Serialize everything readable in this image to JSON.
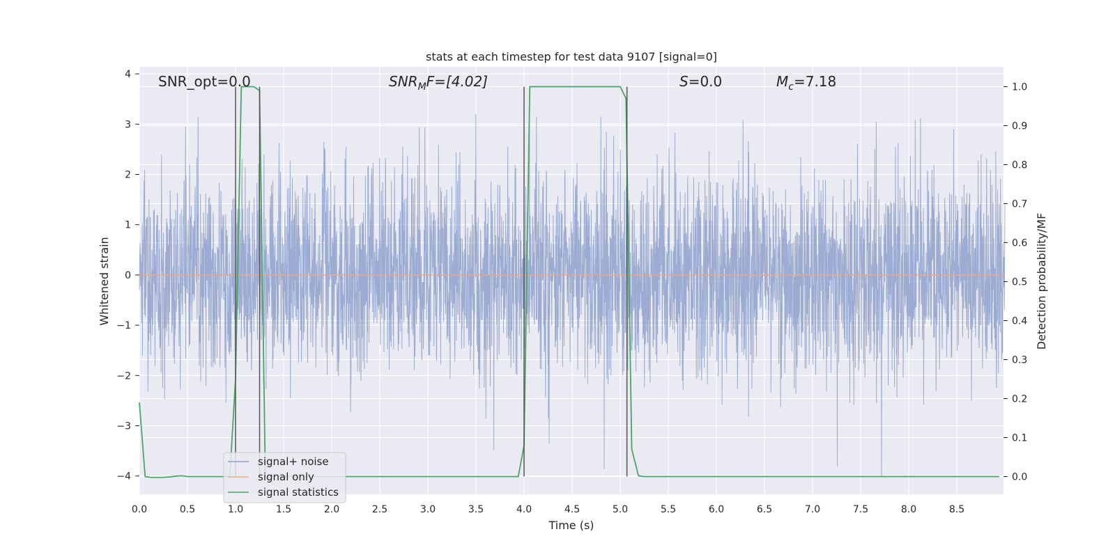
{
  "chart_data": {
    "type": "line",
    "title": "stats at each timestep for test data 9107 [signal=0]",
    "xlabel": "Time (s)",
    "ylabel": "Whitened strain",
    "y2label": "Detection probability/MF",
    "xlim": [
      0.0,
      9.0
    ],
    "ylim": [
      -4.4,
      4.15
    ],
    "y2lim": [
      -0.05,
      1.03
    ],
    "xticks": [
      "0.0",
      "0.5",
      "1.0",
      "1.5",
      "2.0",
      "2.5",
      "3.0",
      "3.5",
      "4.0",
      "4.5",
      "5.0",
      "5.5",
      "6.0",
      "6.5",
      "7.0",
      "7.5",
      "8.0",
      "8.5"
    ],
    "yticks": [
      "4",
      "3",
      "2",
      "1",
      "0",
      "−1",
      "−2",
      "−3",
      "−4"
    ],
    "y2ticks": [
      "1.0",
      "0.9",
      "0.8",
      "0.7",
      "0.6",
      "0.5",
      "0.4",
      "0.3",
      "0.2",
      "0.1",
      "0.0"
    ],
    "grid": true,
    "legend_position": "bottom-left",
    "annotations": {
      "snr_opt": "SNR_opt=0.0",
      "snr_mf_base": "SNR",
      "snr_mf_sub": "M",
      "snr_mf_tail": "F=[4.02]",
      "s_label": "S",
      "s_value": "=0.0",
      "mc_base": "M",
      "mc_sub": "c",
      "mc_value": "=7.18"
    },
    "series": [
      {
        "name": "signal+ noise",
        "color": "#8da0cb",
        "description_shown": "dense noise trace",
        "amplitude_range": [
          -4.0,
          3.5
        ]
      },
      {
        "name": "signal only",
        "color": "#e8a888",
        "x": [
          0.0,
          9.0
        ],
        "y": [
          0.0,
          0.0
        ]
      },
      {
        "name": "signal statistics",
        "color": "#4aa564",
        "axis": "right",
        "x": [
          0.0,
          0.06,
          0.12,
          0.19,
          0.25,
          0.31,
          0.38,
          0.44,
          0.5,
          0.56,
          0.62,
          0.69,
          0.75,
          0.81,
          0.88,
          0.94,
          1.0,
          1.06,
          1.12,
          1.19,
          1.25,
          1.31,
          1.38,
          1.44,
          2.0,
          3.0,
          3.94,
          4.0,
          4.06,
          4.12,
          4.5,
          5.0,
          5.06,
          5.12,
          5.19,
          5.25,
          6.0,
          7.0,
          8.0,
          8.94
        ],
        "y": [
          0.19,
          0.0,
          -0.002,
          -0.002,
          -0.002,
          -0.001,
          0.001,
          0.002,
          0.0,
          0.0,
          0.0,
          0.0,
          0.0,
          0.0,
          0.0,
          0.0,
          0.25,
          1.0,
          1.0,
          1.0,
          0.99,
          0.0,
          0.0,
          0.0,
          0.0,
          0.0,
          0.0,
          0.08,
          1.0,
          1.0,
          1.0,
          1.0,
          0.97,
          0.07,
          0.002,
          0.0,
          0.0,
          0.0,
          0.0,
          0.0
        ]
      }
    ],
    "vertical_lines": [
      1.0,
      1.25,
      4.0,
      5.07
    ],
    "vertical_line_color": "#555555"
  }
}
